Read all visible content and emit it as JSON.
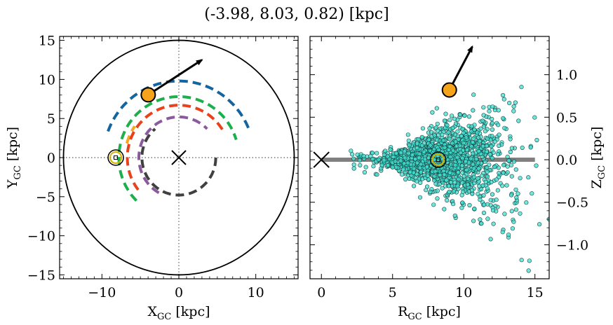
{
  "title": "(-3.98, 8.03, 0.82) [kpc]",
  "chart_data": [
    {
      "type": "scatter",
      "panel": "left",
      "xlabel": "X",
      "xlabel_sub": "GC",
      "xlabel_unit": " [kpc]",
      "ylabel": "Y",
      "ylabel_sub": "GC",
      "ylabel_unit": " [kpc]",
      "xlim": [
        -15.5,
        15.5
      ],
      "ylim": [
        -15.5,
        15.5
      ],
      "xticks": [
        -10,
        0,
        10
      ],
      "yticks": [
        15,
        10,
        5,
        0,
        -5,
        -10,
        -15
      ],
      "xtick_labels": [
        "−10",
        "0",
        "10"
      ],
      "ytick_labels": [
        "15",
        "10",
        "5",
        "0",
        "−5",
        "−10",
        "−15"
      ],
      "boundary_circle_radius": 15,
      "galactic_center": [
        0,
        0
      ],
      "sun": [
        -8.2,
        0
      ],
      "target": [
        -3.98,
        8.03
      ],
      "velocity_arrow_end": [
        3,
        12.5
      ],
      "arms": [
        {
          "color": "#1464a0",
          "radius": 9.8,
          "theta_start": 160,
          "theta_end": 20
        },
        {
          "color": "#1cb04c",
          "radius": 7.8,
          "theta_start": 225,
          "theta_end": 17
        },
        {
          "color": "#f5a623",
          "radius": 7.0,
          "theta_start": 165,
          "theta_end": 145
        },
        {
          "color": "#e8421c",
          "radius": 6.7,
          "theta_start": 218,
          "theta_end": 30
        },
        {
          "color": "#8a5a9e",
          "radius": 5.2,
          "theta_start": 240,
          "theta_end": 45
        },
        {
          "color": "#404040",
          "radius": 4.8,
          "theta_start": 0,
          "theta_end": 130,
          "reverse": true
        }
      ]
    },
    {
      "type": "scatter",
      "panel": "right",
      "xlabel": "R",
      "xlabel_sub": "GC",
      "xlabel_unit": " [kpc]",
      "ylabel": "Z",
      "ylabel_sub": "GC",
      "ylabel_unit": " [kpc]",
      "xlim": [
        -0.8,
        16
      ],
      "ylim": [
        -1.4,
        1.45
      ],
      "xticks": [
        0,
        5,
        10,
        15
      ],
      "yticks": [
        1.0,
        0.5,
        0.0,
        -0.5,
        -1.0
      ],
      "xtick_labels": [
        "0",
        "5",
        "10",
        "15"
      ],
      "ytick_labels": [
        "1.0",
        "0.5",
        "0.0",
        "−0.5",
        "−1.0"
      ],
      "disk_line": {
        "x": [
          0,
          15
        ],
        "y": 0
      },
      "galactic_center": [
        0,
        0
      ],
      "sun": [
        8.2,
        0
      ],
      "target": [
        8.99,
        0.82
      ],
      "velocity_arrow_end": [
        10.6,
        1.33
      ],
      "star_color": "#40e0d0",
      "star_count": 1600
    }
  ]
}
